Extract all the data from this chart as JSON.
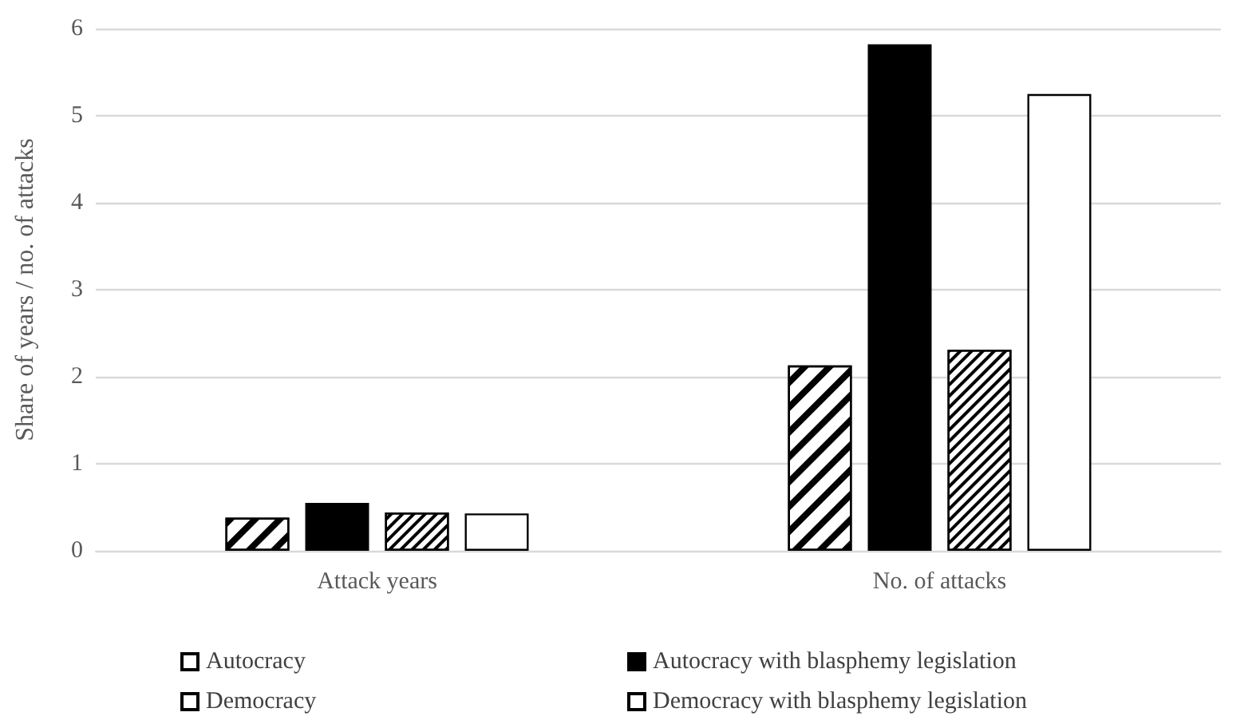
{
  "chart_data": {
    "type": "bar",
    "ylabel": "Share of years / no. of attacks",
    "categories": [
      "Attack years",
      "No. of attacks"
    ],
    "series": [
      {
        "name": "Autocracy",
        "color": "#ffffff",
        "values": [
          0.38,
          2.13
        ]
      },
      {
        "name": "Autocracy with blasphemy legislation",
        "color": "#000000",
        "values": [
          0.55,
          5.82
        ]
      },
      {
        "name": "Democracy",
        "color": "#ffffff",
        "values": [
          0.44,
          2.31
        ]
      },
      {
        "name": "Democracy with blasphemy legislation",
        "color": "#ffffff",
        "values": [
          0.43,
          5.25
        ]
      }
    ],
    "ylim": [
      0,
      6
    ],
    "yticks": [
      0,
      1,
      2,
      3,
      4,
      5,
      6
    ],
    "grid": "y",
    "legend": "bottom"
  }
}
